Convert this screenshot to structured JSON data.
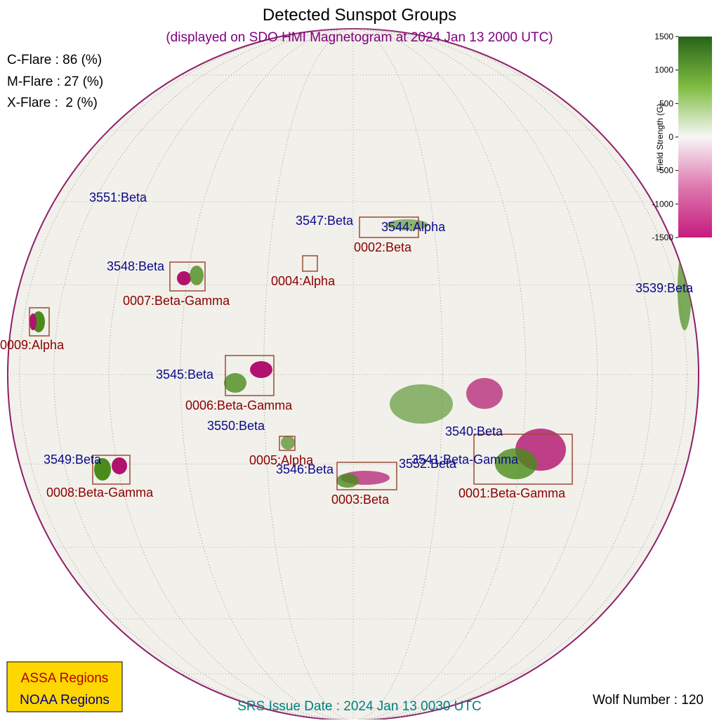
{
  "header": {
    "title": "Detected Sunspot Groups",
    "subtitle": "(displayed on SDO HMI Magnetogram at 2024 Jan 13 2000 UTC)"
  },
  "flare_probabilities": [
    "C-Flare : 86 (%)",
    "M-Flare : 27 (%)",
    "X-Flare :  2 (%)"
  ],
  "colorbar": {
    "label": "Field Strength (G)",
    "ticks": [
      1500,
      1000,
      500,
      0,
      -500,
      -1000,
      -1500
    ]
  },
  "noaa_regions": [
    "3551:Beta",
    "3547:Beta",
    "3544:Alpha",
    "3548:Beta",
    "3539:Beta",
    "3545:Beta",
    "3550:Beta",
    "3540:Beta",
    "3549:Beta",
    "3541:Beta-Gamma",
    "3552:Beta",
    "3546:Beta"
  ],
  "assa_regions": [
    "0002:Beta",
    "0004:Alpha",
    "0007:Beta-Gamma",
    "0009:Alpha",
    "0006:Beta-Gamma",
    "0005:Alpha",
    "0008:Beta-Gamma",
    "0003:Beta",
    "0001:Beta-Gamma"
  ],
  "legend": [
    "ASSA Regions",
    "NOAA Regions"
  ],
  "footer": {
    "issue_date": "SRS Issue Date : 2024 Jan 13 0030 UTC",
    "wolf_number": "Wolf Number : 120"
  }
}
